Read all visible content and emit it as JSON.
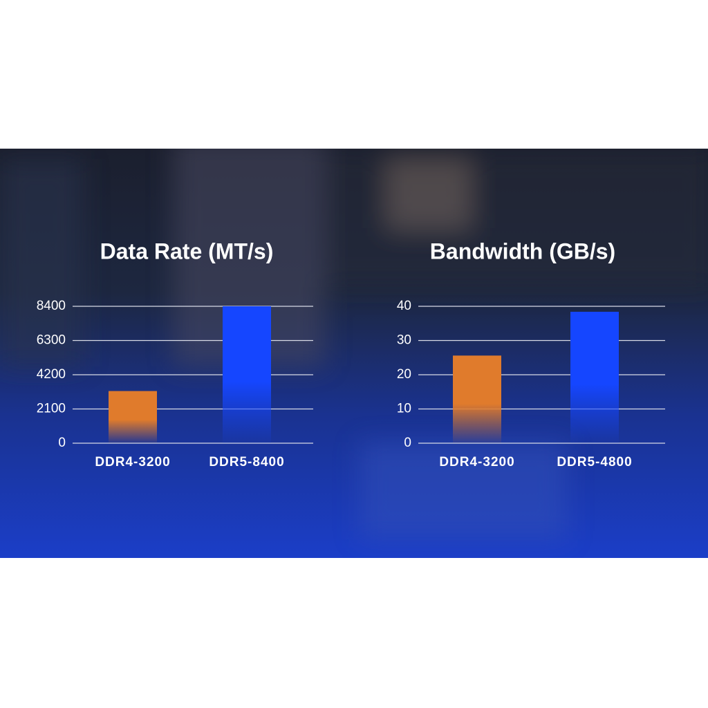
{
  "chart_data": [
    {
      "type": "bar",
      "title": "Data Rate (MT/s)",
      "categories": [
        "DDR4-3200",
        "DDR5-8400"
      ],
      "values": [
        3200,
        8400
      ],
      "colors": [
        "#e07b2c",
        "#1546ff"
      ],
      "ylim": [
        0,
        8400
      ],
      "yticks": [
        0,
        2100,
        4200,
        6300,
        8400
      ],
      "grid": true
    },
    {
      "type": "bar",
      "title": "Bandwidth (GB/s)",
      "categories": [
        "DDR4-3200",
        "DDR5-4800"
      ],
      "values": [
        25.6,
        38.4
      ],
      "colors": [
        "#e07b2c",
        "#1546ff"
      ],
      "ylim": [
        0,
        40
      ],
      "yticks": [
        0,
        10,
        20,
        30,
        40
      ],
      "grid": true
    }
  ]
}
